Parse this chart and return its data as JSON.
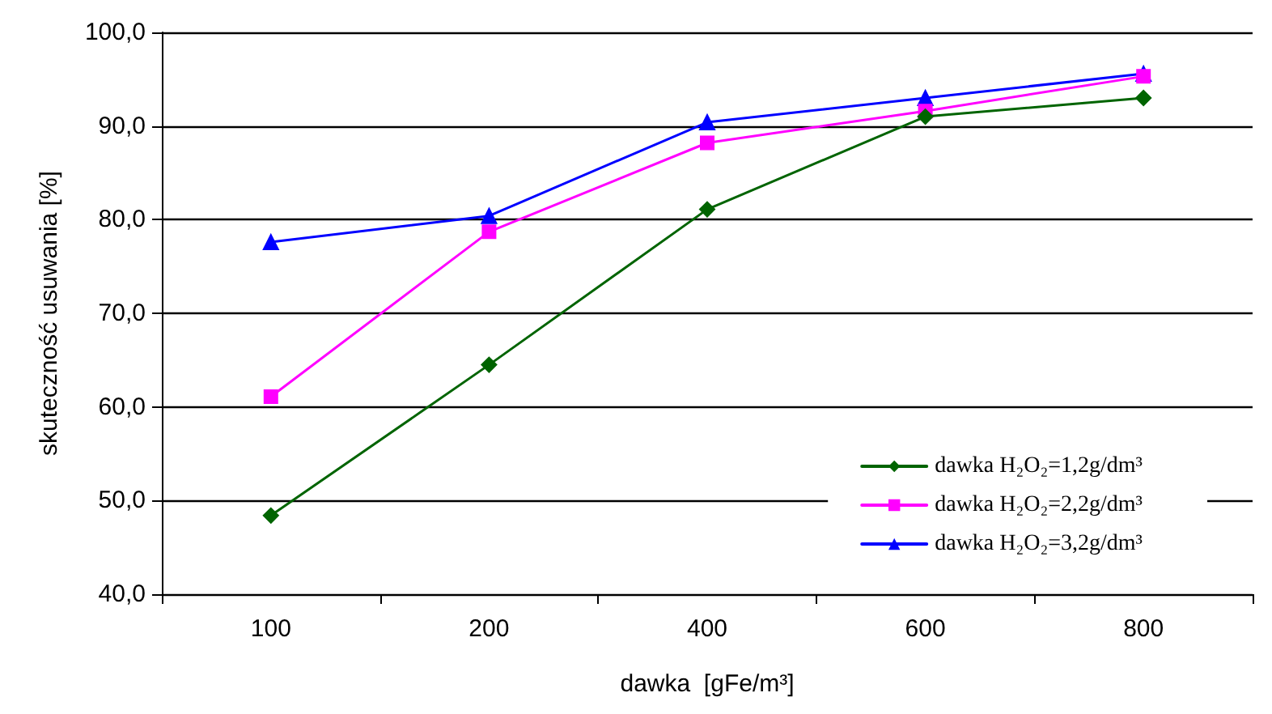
{
  "chart_data": {
    "type": "line",
    "xlabel": "dawka  [gFe/m³]",
    "ylabel": "skuteczność usuwania [%]",
    "categories": [
      "100",
      "200",
      "400",
      "600",
      "800"
    ],
    "series": [
      {
        "name": "dawka H₂O₂=1,2g/dm³",
        "color": "#006400",
        "marker": "diamond",
        "values": [
          48.4,
          64.5,
          81.1,
          91.0,
          93.0
        ]
      },
      {
        "name": "dawka H₂O₂=2,2g/dm³",
        "color": "#ff00ff",
        "marker": "square",
        "values": [
          61.1,
          78.7,
          88.2,
          91.6,
          95.3
        ]
      },
      {
        "name": "dawka H₂O₂=3,2g/dm³",
        "color": "#0000ff",
        "marker": "triangle",
        "values": [
          77.6,
          80.4,
          90.4,
          93.0,
          95.6
        ]
      }
    ],
    "ylim": [
      40,
      100
    ],
    "yticks": [
      {
        "value": 40,
        "label": "40,0"
      },
      {
        "value": 50,
        "label": "50,0"
      },
      {
        "value": 60,
        "label": "60,0"
      },
      {
        "value": 70,
        "label": "70,0"
      },
      {
        "value": 80,
        "label": "80,0"
      },
      {
        "value": 90,
        "label": "90,0"
      },
      {
        "value": 100,
        "label": "100,0"
      }
    ],
    "grid": "y",
    "legend": "bottom right",
    "line_style": "solid"
  }
}
